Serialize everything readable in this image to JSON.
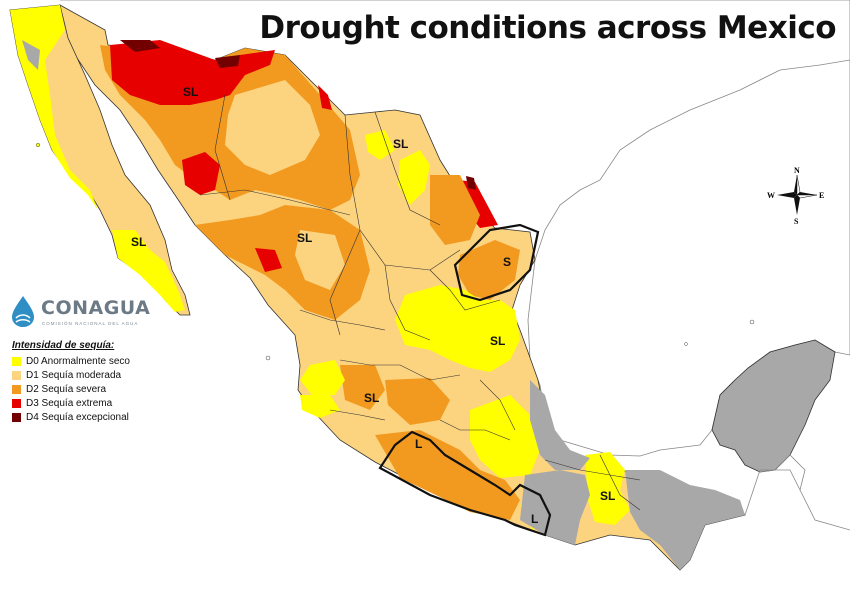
{
  "title": "Drought conditions across Mexico",
  "logo": {
    "name": "CONAGUA",
    "subtitle": "COMISIÓN NACIONAL DEL AGUA"
  },
  "legend": {
    "title": "Intensidad de sequía:",
    "items": [
      {
        "code": "D0",
        "label": "D0 Anormalmente seco",
        "color": "#ffff00"
      },
      {
        "code": "D1",
        "label": "D1 Sequía moderada",
        "color": "#fcd37f"
      },
      {
        "code": "D2",
        "label": "D2 Sequía severa",
        "color": "#f29a1f"
      },
      {
        "code": "D3",
        "label": "D3 Sequía extrema",
        "color": "#e60000"
      },
      {
        "code": "D4",
        "label": "D4 Sequía excepcional",
        "color": "#730000"
      }
    ]
  },
  "region_labels": [
    "SL",
    "SL",
    "SL",
    "SL",
    "S",
    "SL",
    "SL",
    "L",
    "L",
    "SL"
  ],
  "compass": {
    "n": "N",
    "s": "S",
    "e": "E",
    "w": "W"
  },
  "colors": {
    "no_data": "#a8a8a8",
    "land_outside": "#ffffff",
    "border": "#333333"
  }
}
